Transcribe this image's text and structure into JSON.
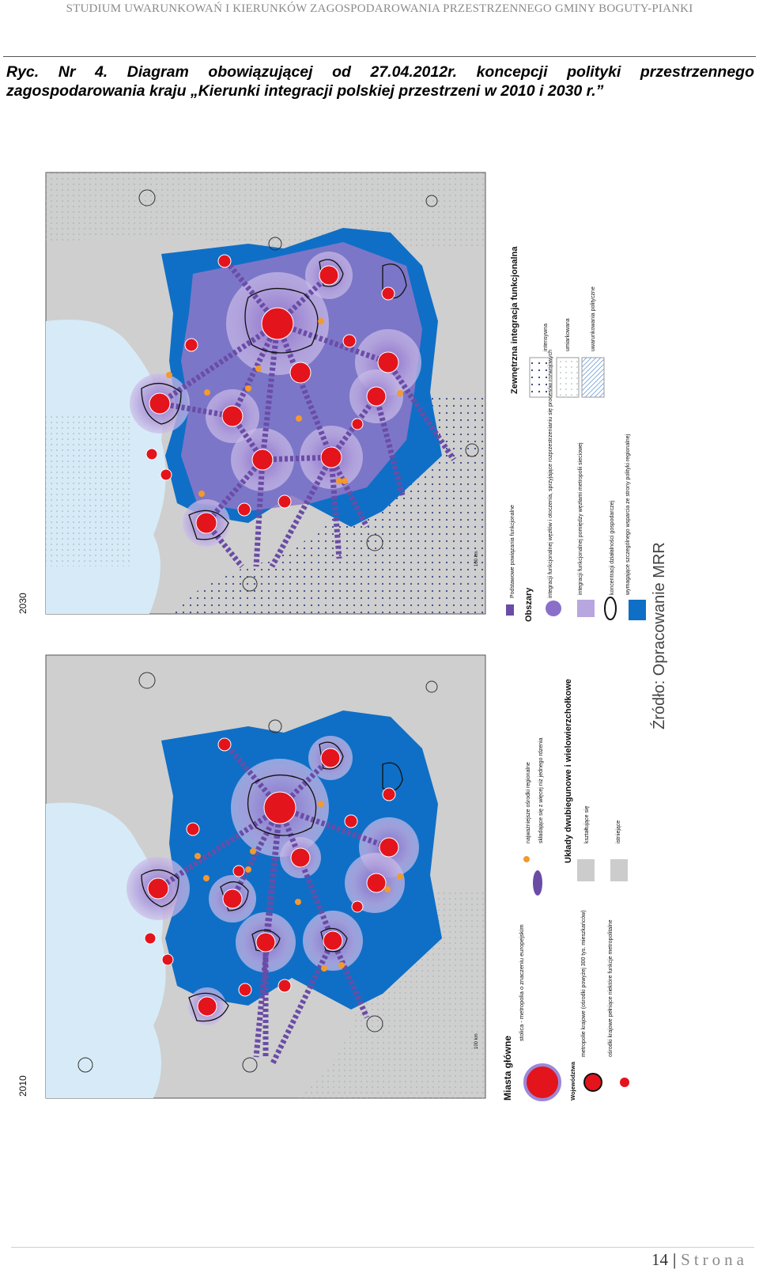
{
  "header": {
    "running_title": "STUDIUM UWARUNKOWAŃ I KIERUNKÓW ZAGOSPODAROWANIA PRZESTRZENNEGO GMINY BOGUTY-PIANKI"
  },
  "caption": {
    "line1": "Ryc. Nr 4. Diagram obowiązującej od 27.04.2012r. koncepcji polityki przestrzennego",
    "line2": "zagospodarowania kraju „Kierunki integracji polskiej przestrzeni w 2010 i 2030 r.”"
  },
  "figure": {
    "map_2010": {
      "year": "2010",
      "scale": "100 km"
    },
    "map_2030": {
      "year": "2030",
      "scale": "100 km"
    },
    "legend_left": {
      "title": "Miasta główne",
      "capital": "stolica - metropolia o znaczeniu europejskim",
      "voivodeship_heading": "Województwa",
      "metropolie": "metropolie krajowe (ośrodki powyżej 300 tys. mieszkańców)",
      "osrodki": "ośrodki krajowe pełniące niektóre funkcje metropolitalne",
      "regional": "najważniejsze ośrodki regionalne",
      "cluster": "składające się z więcej niż jednego rdzenia",
      "multipolar_title": "Układy dwubiegunowe i wielowierzchołkowe",
      "forming": "kształtujące się",
      "existing": "istniejące"
    },
    "legend_right": {
      "links": "Podstawowe powiązania funkcjonalne",
      "areas_heading": "Obszary",
      "area1": "integracji funkcjonalnej węzłów i otoczenia, sprzyjające rozprzestrzenianiu się procesów rozwojowych",
      "area2": "integracji funkcjonalnej pomiędzy węzłami metropolii sieciowej",
      "area3": "koncentracji działalności gospodarczej",
      "area4": "wymagające szczególnego wsparcia ze strony polityki regionalnej",
      "external_title": "Zewnętrzna integracja funkcjonalna",
      "ext1": "intensywna",
      "ext2": "umiarkowana",
      "ext3": "uwarunkowania polityczne"
    },
    "source": "Źródło: Opracowanie MRR"
  },
  "footer": {
    "page_number": "14",
    "word": "Strona"
  },
  "colors": {
    "country": "#0f6fc6",
    "neighbours": "#cfcfcf",
    "sea": "#d6ebf7",
    "city": "#e3141c",
    "halo": "#b7a6dc",
    "link": "#6a4ca6",
    "regional": "#f29a2e"
  }
}
